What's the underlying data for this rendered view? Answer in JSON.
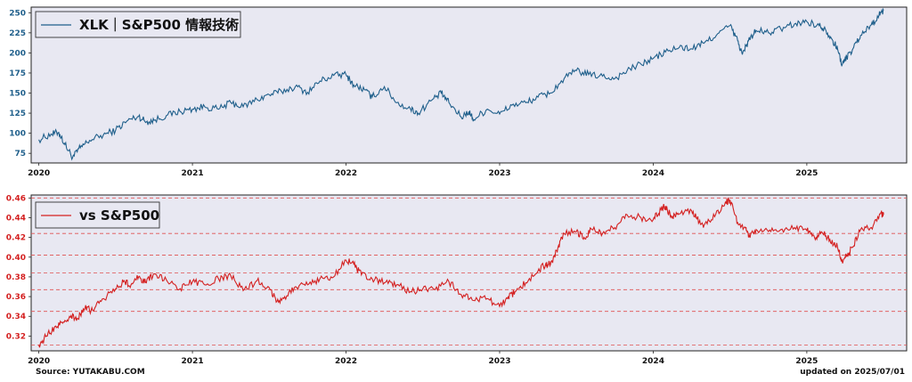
{
  "footer": {
    "source": "Source: YUTAKABU.COM",
    "updated": "updated on 2025/07/01"
  },
  "colors": {
    "panel_bg": "#e8e8f2",
    "top_line": "#1f5f8b",
    "top_tick": "#1f5f8b",
    "bottom_line": "#d42020",
    "bottom_tick": "#d42020",
    "grid_dash": "#e05050"
  },
  "chart_data": [
    {
      "type": "line",
      "legend": [
        "XLK｜S&P500 情報技術"
      ],
      "legend_position": "top-left",
      "x_ticks": [
        "2020",
        "2021",
        "2022",
        "2023",
        "2024",
        "2025"
      ],
      "y_ticks": [
        75,
        100,
        125,
        150,
        175,
        200,
        225,
        250
      ],
      "ylim": [
        63,
        257
      ],
      "xlim": [
        2019.95,
        2025.65
      ],
      "grid": false,
      "series": [
        {
          "name": "XLK｜S&P500 情報技術",
          "points": [
            [
              2020.0,
              92
            ],
            [
              2020.08,
              99
            ],
            [
              2020.13,
              101
            ],
            [
              2020.17,
              86
            ],
            [
              2020.22,
              70
            ],
            [
              2020.27,
              82
            ],
            [
              2020.33,
              91
            ],
            [
              2020.42,
              98
            ],
            [
              2020.5,
              104
            ],
            [
              2020.58,
              116
            ],
            [
              2020.65,
              121
            ],
            [
              2020.7,
              114
            ],
            [
              2020.75,
              116
            ],
            [
              2020.83,
              122
            ],
            [
              2020.92,
              127
            ],
            [
              2021.0,
              130
            ],
            [
              2021.08,
              133
            ],
            [
              2021.17,
              130
            ],
            [
              2021.25,
              138
            ],
            [
              2021.33,
              133
            ],
            [
              2021.42,
              142
            ],
            [
              2021.5,
              148
            ],
            [
              2021.58,
              152
            ],
            [
              2021.67,
              158
            ],
            [
              2021.75,
              151
            ],
            [
              2021.83,
              165
            ],
            [
              2021.92,
              172
            ],
            [
              2022.0,
              173
            ],
            [
              2022.05,
              160
            ],
            [
              2022.12,
              154
            ],
            [
              2022.17,
              145
            ],
            [
              2022.25,
              158
            ],
            [
              2022.33,
              138
            ],
            [
              2022.42,
              130
            ],
            [
              2022.47,
              125
            ],
            [
              2022.55,
              140
            ],
            [
              2022.62,
              150
            ],
            [
              2022.67,
              138
            ],
            [
              2022.75,
              120
            ],
            [
              2022.8,
              127
            ],
            [
              2022.83,
              117
            ],
            [
              2022.92,
              130
            ],
            [
              2023.0,
              124
            ],
            [
              2023.08,
              135
            ],
            [
              2023.17,
              138
            ],
            [
              2023.25,
              145
            ],
            [
              2023.33,
              150
            ],
            [
              2023.42,
              168
            ],
            [
              2023.5,
              178
            ],
            [
              2023.58,
              173
            ],
            [
              2023.67,
              171
            ],
            [
              2023.75,
              168
            ],
            [
              2023.83,
              178
            ],
            [
              2023.92,
              186
            ],
            [
              2024.0,
              193
            ],
            [
              2024.08,
              201
            ],
            [
              2024.17,
              207
            ],
            [
              2024.25,
              205
            ],
            [
              2024.33,
              212
            ],
            [
              2024.42,
              224
            ],
            [
              2024.5,
              234
            ],
            [
              2024.55,
              215
            ],
            [
              2024.58,
              198
            ],
            [
              2024.62,
              215
            ],
            [
              2024.67,
              228
            ],
            [
              2024.75,
              225
            ],
            [
              2024.83,
              230
            ],
            [
              2024.92,
              236
            ],
            [
              2025.0,
              239
            ],
            [
              2025.08,
              234
            ],
            [
              2025.12,
              230
            ],
            [
              2025.17,
              215
            ],
            [
              2025.2,
              205
            ],
            [
              2025.23,
              185
            ],
            [
              2025.26,
              195
            ],
            [
              2025.3,
              205
            ],
            [
              2025.35,
              222
            ],
            [
              2025.42,
              235
            ],
            [
              2025.47,
              247
            ],
            [
              2025.5,
              253
            ]
          ]
        }
      ]
    },
    {
      "type": "line",
      "legend": [
        "vs S&P500"
      ],
      "legend_position": "top-left",
      "x_ticks": [
        "2020",
        "2021",
        "2022",
        "2023",
        "2024",
        "2025"
      ],
      "y_ticks": [
        0.32,
        0.34,
        0.36,
        0.38,
        0.4,
        0.42,
        0.44,
        0.46
      ],
      "ylim": [
        0.305,
        0.463
      ],
      "xlim": [
        2019.95,
        2025.65
      ],
      "reference_lines": [
        0.311,
        0.345,
        0.367,
        0.384,
        0.402,
        0.424,
        0.46
      ],
      "series": [
        {
          "name": "vs S&P500",
          "points": [
            [
              2020.0,
              0.311
            ],
            [
              2020.05,
              0.32
            ],
            [
              2020.1,
              0.328
            ],
            [
              2020.15,
              0.334
            ],
            [
              2020.2,
              0.34
            ],
            [
              2020.25,
              0.338
            ],
            [
              2020.3,
              0.348
            ],
            [
              2020.35,
              0.346
            ],
            [
              2020.42,
              0.358
            ],
            [
              2020.5,
              0.368
            ],
            [
              2020.55,
              0.375
            ],
            [
              2020.6,
              0.372
            ],
            [
              2020.65,
              0.38
            ],
            [
              2020.7,
              0.374
            ],
            [
              2020.75,
              0.383
            ],
            [
              2020.83,
              0.377
            ],
            [
              2020.92,
              0.368
            ],
            [
              2021.0,
              0.375
            ],
            [
              2021.08,
              0.372
            ],
            [
              2021.17,
              0.378
            ],
            [
              2021.25,
              0.381
            ],
            [
              2021.33,
              0.366
            ],
            [
              2021.42,
              0.376
            ],
            [
              2021.5,
              0.369
            ],
            [
              2021.55,
              0.355
            ],
            [
              2021.6,
              0.36
            ],
            [
              2021.67,
              0.37
            ],
            [
              2021.75,
              0.372
            ],
            [
              2021.83,
              0.378
            ],
            [
              2021.92,
              0.38
            ],
            [
              2022.0,
              0.397
            ],
            [
              2022.05,
              0.393
            ],
            [
              2022.1,
              0.382
            ],
            [
              2022.17,
              0.378
            ],
            [
              2022.25,
              0.374
            ],
            [
              2022.33,
              0.372
            ],
            [
              2022.42,
              0.365
            ],
            [
              2022.5,
              0.368
            ],
            [
              2022.58,
              0.367
            ],
            [
              2022.67,
              0.375
            ],
            [
              2022.75,
              0.362
            ],
            [
              2022.83,
              0.356
            ],
            [
              2022.92,
              0.358
            ],
            [
              2023.0,
              0.35
            ],
            [
              2023.05,
              0.358
            ],
            [
              2023.1,
              0.365
            ],
            [
              2023.17,
              0.374
            ],
            [
              2023.25,
              0.386
            ],
            [
              2023.3,
              0.393
            ],
            [
              2023.33,
              0.392
            ],
            [
              2023.38,
              0.41
            ],
            [
              2023.42,
              0.424
            ],
            [
              2023.5,
              0.426
            ],
            [
              2023.55,
              0.42
            ],
            [
              2023.6,
              0.428
            ],
            [
              2023.67,
              0.424
            ],
            [
              2023.75,
              0.43
            ],
            [
              2023.83,
              0.443
            ],
            [
              2023.92,
              0.44
            ],
            [
              2024.0,
              0.438
            ],
            [
              2024.05,
              0.448
            ],
            [
              2024.08,
              0.452
            ],
            [
              2024.12,
              0.44
            ],
            [
              2024.17,
              0.444
            ],
            [
              2024.25,
              0.447
            ],
            [
              2024.3,
              0.436
            ],
            [
              2024.33,
              0.432
            ],
            [
              2024.4,
              0.441
            ],
            [
              2024.47,
              0.456
            ],
            [
              2024.5,
              0.458
            ],
            [
              2024.55,
              0.435
            ],
            [
              2024.6,
              0.43
            ],
            [
              2024.62,
              0.42
            ],
            [
              2024.67,
              0.428
            ],
            [
              2024.75,
              0.426
            ],
            [
              2024.83,
              0.428
            ],
            [
              2024.92,
              0.43
            ],
            [
              2025.0,
              0.427
            ],
            [
              2025.05,
              0.42
            ],
            [
              2025.1,
              0.425
            ],
            [
              2025.15,
              0.418
            ],
            [
              2025.2,
              0.41
            ],
            [
              2025.23,
              0.396
            ],
            [
              2025.26,
              0.402
            ],
            [
              2025.3,
              0.41
            ],
            [
              2025.35,
              0.428
            ],
            [
              2025.42,
              0.43
            ],
            [
              2025.48,
              0.444
            ],
            [
              2025.5,
              0.443
            ]
          ]
        }
      ]
    }
  ]
}
